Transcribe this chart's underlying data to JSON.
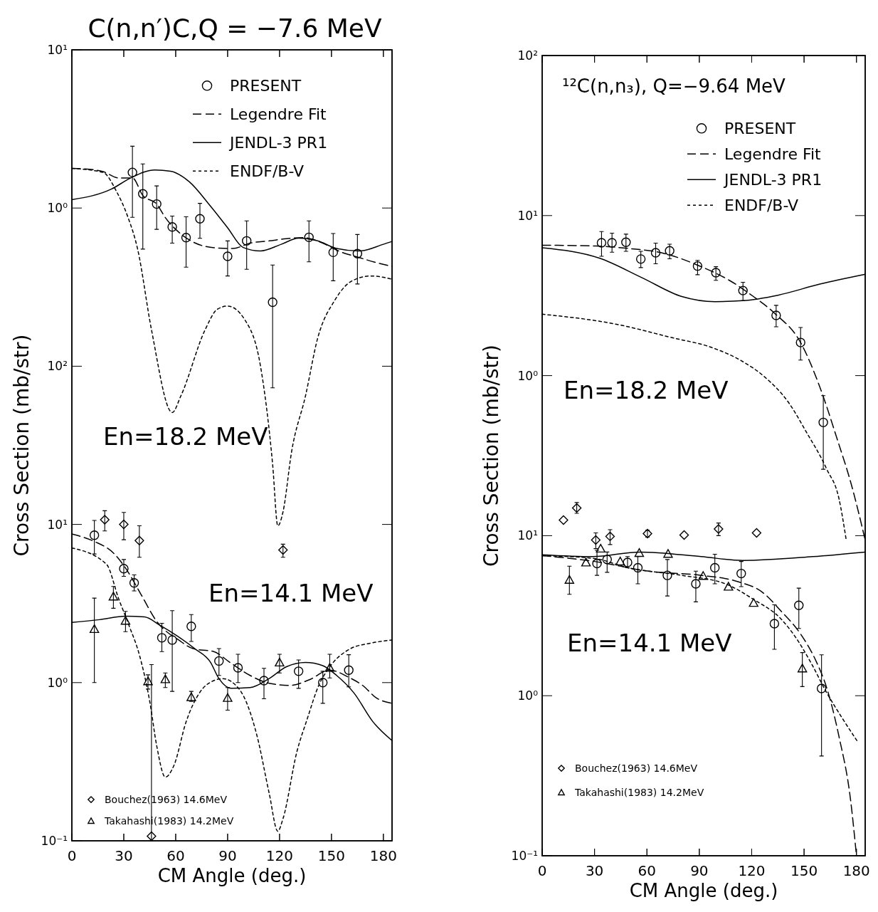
{
  "chart_data": [
    {
      "type": "line",
      "title": "C(n,n′)C,Q = −7.6 MeV",
      "log": "y",
      "xlim": [
        0,
        185
      ],
      "xticks": [
        0,
        30,
        60,
        90,
        120,
        150,
        180
      ],
      "ylim": [
        0.0001,
        10
      ],
      "yticks": [
        {
          "value": 1,
          "label": "10⁰"
        },
        {
          "value": 10,
          "label": "10¹"
        }
      ],
      "tick_labels": "y",
      "legend": "top right",
      "annotations": [
        "En=18.2 MeV"
      ],
      "series": [
        {
          "name": "PRESENT",
          "type": "scatter",
          "marker": "circle",
          "color": "#000000",
          "x": [
            35,
            41,
            49,
            58,
            66,
            74,
            90,
            101,
            116,
            137,
            151,
            165
          ],
          "values": [
            1.68,
            1.23,
            1.06,
            0.76,
            0.65,
            0.855,
            0.495,
            0.62,
            0.254,
            0.653,
            0.525,
            0.515
          ],
          "errors": [
            [
              0.873,
              2.46
            ],
            [
              0.55,
              1.9
            ],
            [
              0.733,
              1.38
            ],
            [
              0.6,
              0.89
            ],
            [
              0.423,
              0.88
            ],
            [
              0.643,
              1.07
            ],
            [
              0.372,
              0.62
            ],
            [
              0.41,
              0.83
            ],
            [
              0.073,
              0.436
            ],
            [
              0.457,
              0.83
            ],
            [
              0.347,
              0.69
            ],
            [
              0.331,
              0.68
            ]
          ]
        },
        {
          "name": "Legendre Fit",
          "line_style": "dashed",
          "color": "#000000",
          "x": [
            0,
            10,
            18,
            27,
            35,
            41,
            49,
            54,
            62,
            70,
            83,
            93,
            103,
            114,
            124,
            134,
            145,
            155,
            165,
            175,
            185
          ],
          "values": [
            1.78,
            1.76,
            1.7,
            1.55,
            1.55,
            1.2,
            1.06,
            0.87,
            0.7,
            0.61,
            0.56,
            0.555,
            0.6,
            0.62,
            0.64,
            0.65,
            0.6,
            0.53,
            0.49,
            0.455,
            0.427
          ]
        },
        {
          "name": "JENDL-3 PR1",
          "line_style": "solid",
          "color": "#000000",
          "x": [
            0,
            23,
            34,
            48,
            57,
            68,
            80,
            90,
            99,
            109,
            121,
            131,
            142,
            153,
            166,
            180,
            185
          ],
          "values": [
            1.13,
            1.32,
            1.55,
            1.74,
            1.71,
            1.46,
            1.03,
            0.75,
            0.563,
            0.535,
            0.59,
            0.645,
            0.62,
            0.555,
            0.535,
            0.59,
            0.615
          ]
        },
        {
          "name": "ENDF/B-V",
          "line_style": "dotted",
          "color": "#000000",
          "x": [
            0,
            18,
            26,
            32,
            38,
            46,
            58,
            63,
            77,
            84,
            90,
            100,
            109,
            116,
            119,
            122,
            127,
            135,
            142,
            152,
            162,
            173,
            185
          ],
          "values": [
            1.78,
            1.68,
            1.26,
            0.9,
            0.55,
            0.17,
            0.051,
            0.065,
            0.17,
            0.229,
            0.24,
            0.196,
            0.1,
            0.024,
            0.0098,
            0.012,
            0.029,
            0.065,
            0.15,
            0.262,
            0.347,
            0.372,
            0.355
          ]
        }
      ]
    },
    {
      "type": "line",
      "xlabel": "CM Angle (deg.)",
      "ylabel": "Cross Section (mb/str)",
      "log": "y",
      "xlim": [
        0,
        185
      ],
      "xticks": [
        0,
        30,
        60,
        90,
        120,
        150,
        180
      ],
      "ylim": [
        0.1,
        10000
      ],
      "yticks": [
        {
          "value": 0.1,
          "label": "10⁻¹"
        },
        {
          "value": 1,
          "label": "10⁰"
        },
        {
          "value": 10,
          "label": "10¹"
        },
        {
          "value": 100,
          "label": "10²"
        }
      ],
      "legend": "bottom left",
      "annotations": [
        "En=14.1 MeV"
      ],
      "series": [
        {
          "type": "scatter",
          "marker": "circle",
          "color": "#000000",
          "x": [
            13,
            30,
            36,
            52,
            58,
            69,
            85,
            96,
            111,
            131,
            145,
            160
          ],
          "values": [
            8.55,
            5.25,
            4.27,
            1.92,
            1.86,
            2.27,
            1.37,
            1.24,
            1.03,
            1.18,
            1.0,
            1.2
          ],
          "errors": [
            [
              6.5,
              10.6
            ],
            [
              4.7,
              6.0
            ],
            [
              3.8,
              4.8
            ],
            [
              1.57,
              2.37
            ],
            [
              0.88,
              2.85
            ],
            [
              1.82,
              2.69
            ],
            [
              1.11,
              1.64
            ],
            [
              1.0,
              1.51
            ],
            [
              0.79,
              1.23
            ],
            [
              0.92,
              1.39
            ],
            [
              0.74,
              1.18
            ],
            [
              0.94,
              1.5
            ]
          ]
        },
        {
          "line_style": "dashed",
          "color": "#000000",
          "x": [
            0,
            13,
            24,
            31,
            40,
            49,
            62,
            70,
            82,
            91,
            103,
            114,
            126,
            137,
            149,
            160,
            168,
            176,
            185
          ],
          "values": [
            8.7,
            7.8,
            6.6,
            5.3,
            3.6,
            2.44,
            1.85,
            1.64,
            1.57,
            1.35,
            1.11,
            0.99,
            0.96,
            1.04,
            1.2,
            1.08,
            0.96,
            0.8,
            0.74
          ]
        },
        {
          "line_style": "solid",
          "color": "#000000",
          "x": [
            0,
            16,
            31,
            42,
            51,
            60,
            71,
            80,
            85,
            92,
            103,
            114,
            124,
            135,
            145,
            153,
            163,
            174,
            185
          ],
          "values": [
            2.4,
            2.5,
            2.63,
            2.6,
            2.3,
            2.0,
            1.64,
            1.35,
            1.06,
            0.92,
            0.93,
            1.06,
            1.26,
            1.34,
            1.28,
            1.11,
            0.86,
            0.565,
            0.43
          ]
        },
        {
          "line_style": "dotted",
          "color": "#000000",
          "x": [
            0,
            20,
            27,
            33,
            39,
            45,
            49,
            54,
            59,
            66,
            74,
            82,
            87,
            97,
            107,
            114,
            119,
            122,
            130,
            136,
            143,
            147,
            161,
            172,
            185
          ],
          "values": [
            7.1,
            5.6,
            3.4,
            2.3,
            1.5,
            0.76,
            0.4,
            0.253,
            0.3,
            0.565,
            0.87,
            1.03,
            1.06,
            0.9,
            0.46,
            0.2,
            0.115,
            0.138,
            0.365,
            0.59,
            0.98,
            1.17,
            1.64,
            1.77,
            1.86
          ]
        },
        {
          "name": "Bouchez(1963) 14.6MeV",
          "type": "scatter",
          "marker": "diamond",
          "color": "#000000",
          "x": [
            19,
            30,
            39,
            46,
            122
          ],
          "values": [
            10.7,
            10.0,
            7.9,
            0.107,
            6.9
          ],
          "errors": [
            [
              9.1,
              12.2
            ],
            [
              8.0,
              11.9
            ],
            [
              6.2,
              9.8
            ],
            [
              0.1,
              1.3
            ],
            [
              6.2,
              7.5
            ]
          ]
        },
        {
          "name": "Takahashi(1983) 14.2MeV",
          "type": "scatter",
          "marker": "triangle",
          "color": "#000000",
          "x": [
            13,
            24,
            31,
            44,
            54,
            69,
            90,
            120,
            149
          ],
          "values": [
            2.18,
            3.5,
            2.46,
            1.02,
            1.05,
            0.81,
            0.8,
            1.34,
            1.24
          ],
          "errors": [
            [
              1.0,
              3.42
            ],
            [
              2.95,
              4.05
            ],
            [
              2.1,
              2.82
            ],
            [
              0.91,
              1.12
            ],
            [
              0.93,
              1.15
            ],
            [
              0.76,
              0.88
            ],
            [
              0.67,
              0.93
            ],
            [
              1.15,
              1.51
            ],
            [
              1.07,
              1.51
            ]
          ]
        }
      ]
    },
    {
      "type": "line",
      "title": "¹²C(n,n₃), Q=−9.64 MeV",
      "log": "y",
      "xlim": [
        0,
        185
      ],
      "xticks": [
        0,
        30,
        60,
        90,
        120,
        150,
        180
      ],
      "ylim": [
        0.001,
        100
      ],
      "yticks": [
        {
          "value": 1,
          "label": "10⁰"
        },
        {
          "value": 10,
          "label": "10¹"
        },
        {
          "value": 100,
          "label": "10²"
        }
      ],
      "tick_labels": "y",
      "legend": "top right",
      "annotations": [
        "En=18.2 MeV"
      ],
      "series": [
        {
          "name": "PRESENT",
          "type": "scatter",
          "marker": "circle",
          "color": "#000000",
          "x": [
            34,
            40,
            48,
            56.5,
            65,
            73,
            89,
            99.5,
            115,
            134,
            148,
            161
          ],
          "values": [
            6.76,
            6.76,
            6.81,
            5.35,
            5.86,
            6.03,
            4.84,
            4.4,
            3.4,
            2.38,
            1.61,
            0.51
          ],
          "errors": [
            [
              5.57,
              7.95
            ],
            [
              5.9,
              7.76
            ],
            [
              5.98,
              7.66
            ],
            [
              4.73,
              5.98
            ],
            [
              5.0,
              6.73
            ],
            [
              5.37,
              6.62
            ],
            [
              4.27,
              5.25
            ],
            [
              3.94,
              4.79
            ],
            [
              2.94,
              3.83
            ],
            [
              2.02,
              2.75
            ],
            [
              1.25,
              2.0
            ],
            [
              0.26,
              0.75
            ]
          ]
        },
        {
          "name": "Legendre Fit",
          "line_style": "dashed",
          "color": "#000000",
          "x": [
            0,
            31,
            49,
            71,
            89,
            107,
            121,
            133,
            148,
            159,
            169,
            177,
            185
          ],
          "values": [
            6.53,
            6.45,
            6.24,
            5.76,
            4.9,
            3.95,
            3.12,
            2.46,
            1.61,
            0.85,
            0.4,
            0.21,
            0.094
          ]
        },
        {
          "name": "JENDL-3 PR1",
          "line_style": "solid",
          "color": "#000000",
          "x": [
            0,
            33,
            57,
            80,
            99,
            115,
            135,
            159,
            185
          ],
          "values": [
            6.3,
            5.41,
            4.1,
            3.12,
            2.9,
            2.94,
            3.18,
            3.73,
            4.3
          ]
        },
        {
          "name": "ENDF/B-V",
          "line_style": "dotted",
          "color": "#000000",
          "x": [
            0,
            42,
            74,
            97,
            114,
            127,
            141.5,
            151,
            163,
            170,
            174
          ],
          "values": [
            2.42,
            2.1,
            1.73,
            1.5,
            1.24,
            0.99,
            0.67,
            0.45,
            0.26,
            0.17,
            0.096
          ]
        }
      ]
    },
    {
      "type": "line",
      "xlabel": "CM Angle (deg.)",
      "ylabel": "Cross Section (mb/str)",
      "log": "y",
      "xlim": [
        0,
        185
      ],
      "xticks": [
        0,
        30,
        60,
        90,
        120,
        150,
        180
      ],
      "ylim": [
        0.1,
        10000
      ],
      "yticks": [
        {
          "value": 0.1,
          "label": "10⁻¹"
        },
        {
          "value": 1,
          "label": "10⁰"
        },
        {
          "value": 10,
          "label": "10¹"
        }
      ],
      "legend": "bottom left",
      "annotations": [
        "En=14.1 MeV"
      ],
      "series": [
        {
          "type": "scatter",
          "marker": "circle",
          "color": "#000000",
          "x": [
            31.4,
            37.2,
            48.9,
            54.8,
            71.7,
            88,
            98.9,
            114,
            133,
            147,
            160
          ],
          "values": [
            6.7,
            7.1,
            6.8,
            6.3,
            5.65,
            5.0,
            6.3,
            5.8,
            2.82,
            3.67,
            1.11
          ],
          "errors": [
            [
              5.65,
              8.1
            ],
            [
              5.9,
              7.9
            ],
            [
              6.3,
              7.4
            ],
            [
              5.0,
              7.4
            ],
            [
              4.2,
              7.1
            ],
            [
              3.86,
              6.0
            ],
            [
              5.0,
              7.65
            ],
            [
              4.8,
              6.9
            ],
            [
              1.95,
              3.7
            ],
            [
              2.63,
              4.7
            ],
            [
              0.42,
              1.8
            ]
          ]
        },
        {
          "line_style": "dashed",
          "color": "#000000",
          "x": [
            0,
            30,
            61,
            91,
            111,
            126.5,
            136.6,
            148,
            156.7,
            163.3,
            170,
            176.7,
            180
          ],
          "values": [
            7.5,
            6.9,
            6.0,
            5.65,
            5.2,
            4.4,
            3.4,
            2.43,
            1.66,
            1.09,
            0.555,
            0.22,
            0.1
          ]
        },
        {
          "line_style": "solid",
          "color": "#000000",
          "x": [
            0,
            29,
            56,
            91,
            115,
            155,
            185
          ],
          "values": [
            7.6,
            7.4,
            7.9,
            7.4,
            7.0,
            7.4,
            7.9
          ]
        },
        {
          "line_style": "dotted",
          "color": "#000000",
          "x": [
            0,
            30,
            49,
            80,
            105,
            121,
            137,
            145,
            155,
            162,
            172,
            181
          ],
          "values": [
            7.5,
            7.2,
            6.3,
            5.65,
            5.0,
            4.0,
            3.0,
            2.33,
            1.53,
            1.09,
            0.72,
            0.51
          ]
        },
        {
          "name": "Bouchez(1963) 14.6MeV",
          "type": "scatter",
          "marker": "diamond",
          "color": "#000000",
          "x": [
            12.2,
            19.8,
            30.7,
            38.9,
            60.3,
            81.3,
            101,
            122.8
          ],
          "values": [
            12.5,
            14.9,
            9.4,
            9.9,
            10.3,
            10.1,
            11.0,
            10.4
          ],
          "errors": [
            null,
            [
              13.8,
              16.1
            ],
            [
              8.3,
              10.4
            ],
            [
              8.8,
              10.9
            ],
            [
              9.8,
              10.8
            ],
            null,
            [
              10.0,
              12.0
            ],
            null
          ]
        },
        {
          "name": "Takahashi(1983) 14.2MeV",
          "type": "scatter",
          "marker": "triangle",
          "color": "#000000",
          "x": [
            15.6,
            25.1,
            33.5,
            44.7,
            55.6,
            72.1,
            92.2,
            106.7,
            121.1,
            149
          ],
          "values": [
            5.3,
            6.8,
            8.3,
            6.9,
            7.8,
            7.7,
            5.6,
            4.8,
            3.8,
            1.48
          ],
          "errors": [
            [
              4.3,
              6.45
            ],
            null,
            null,
            null,
            null,
            null,
            null,
            null,
            null,
            [
              1.14,
              1.86
            ]
          ]
        }
      ]
    }
  ]
}
